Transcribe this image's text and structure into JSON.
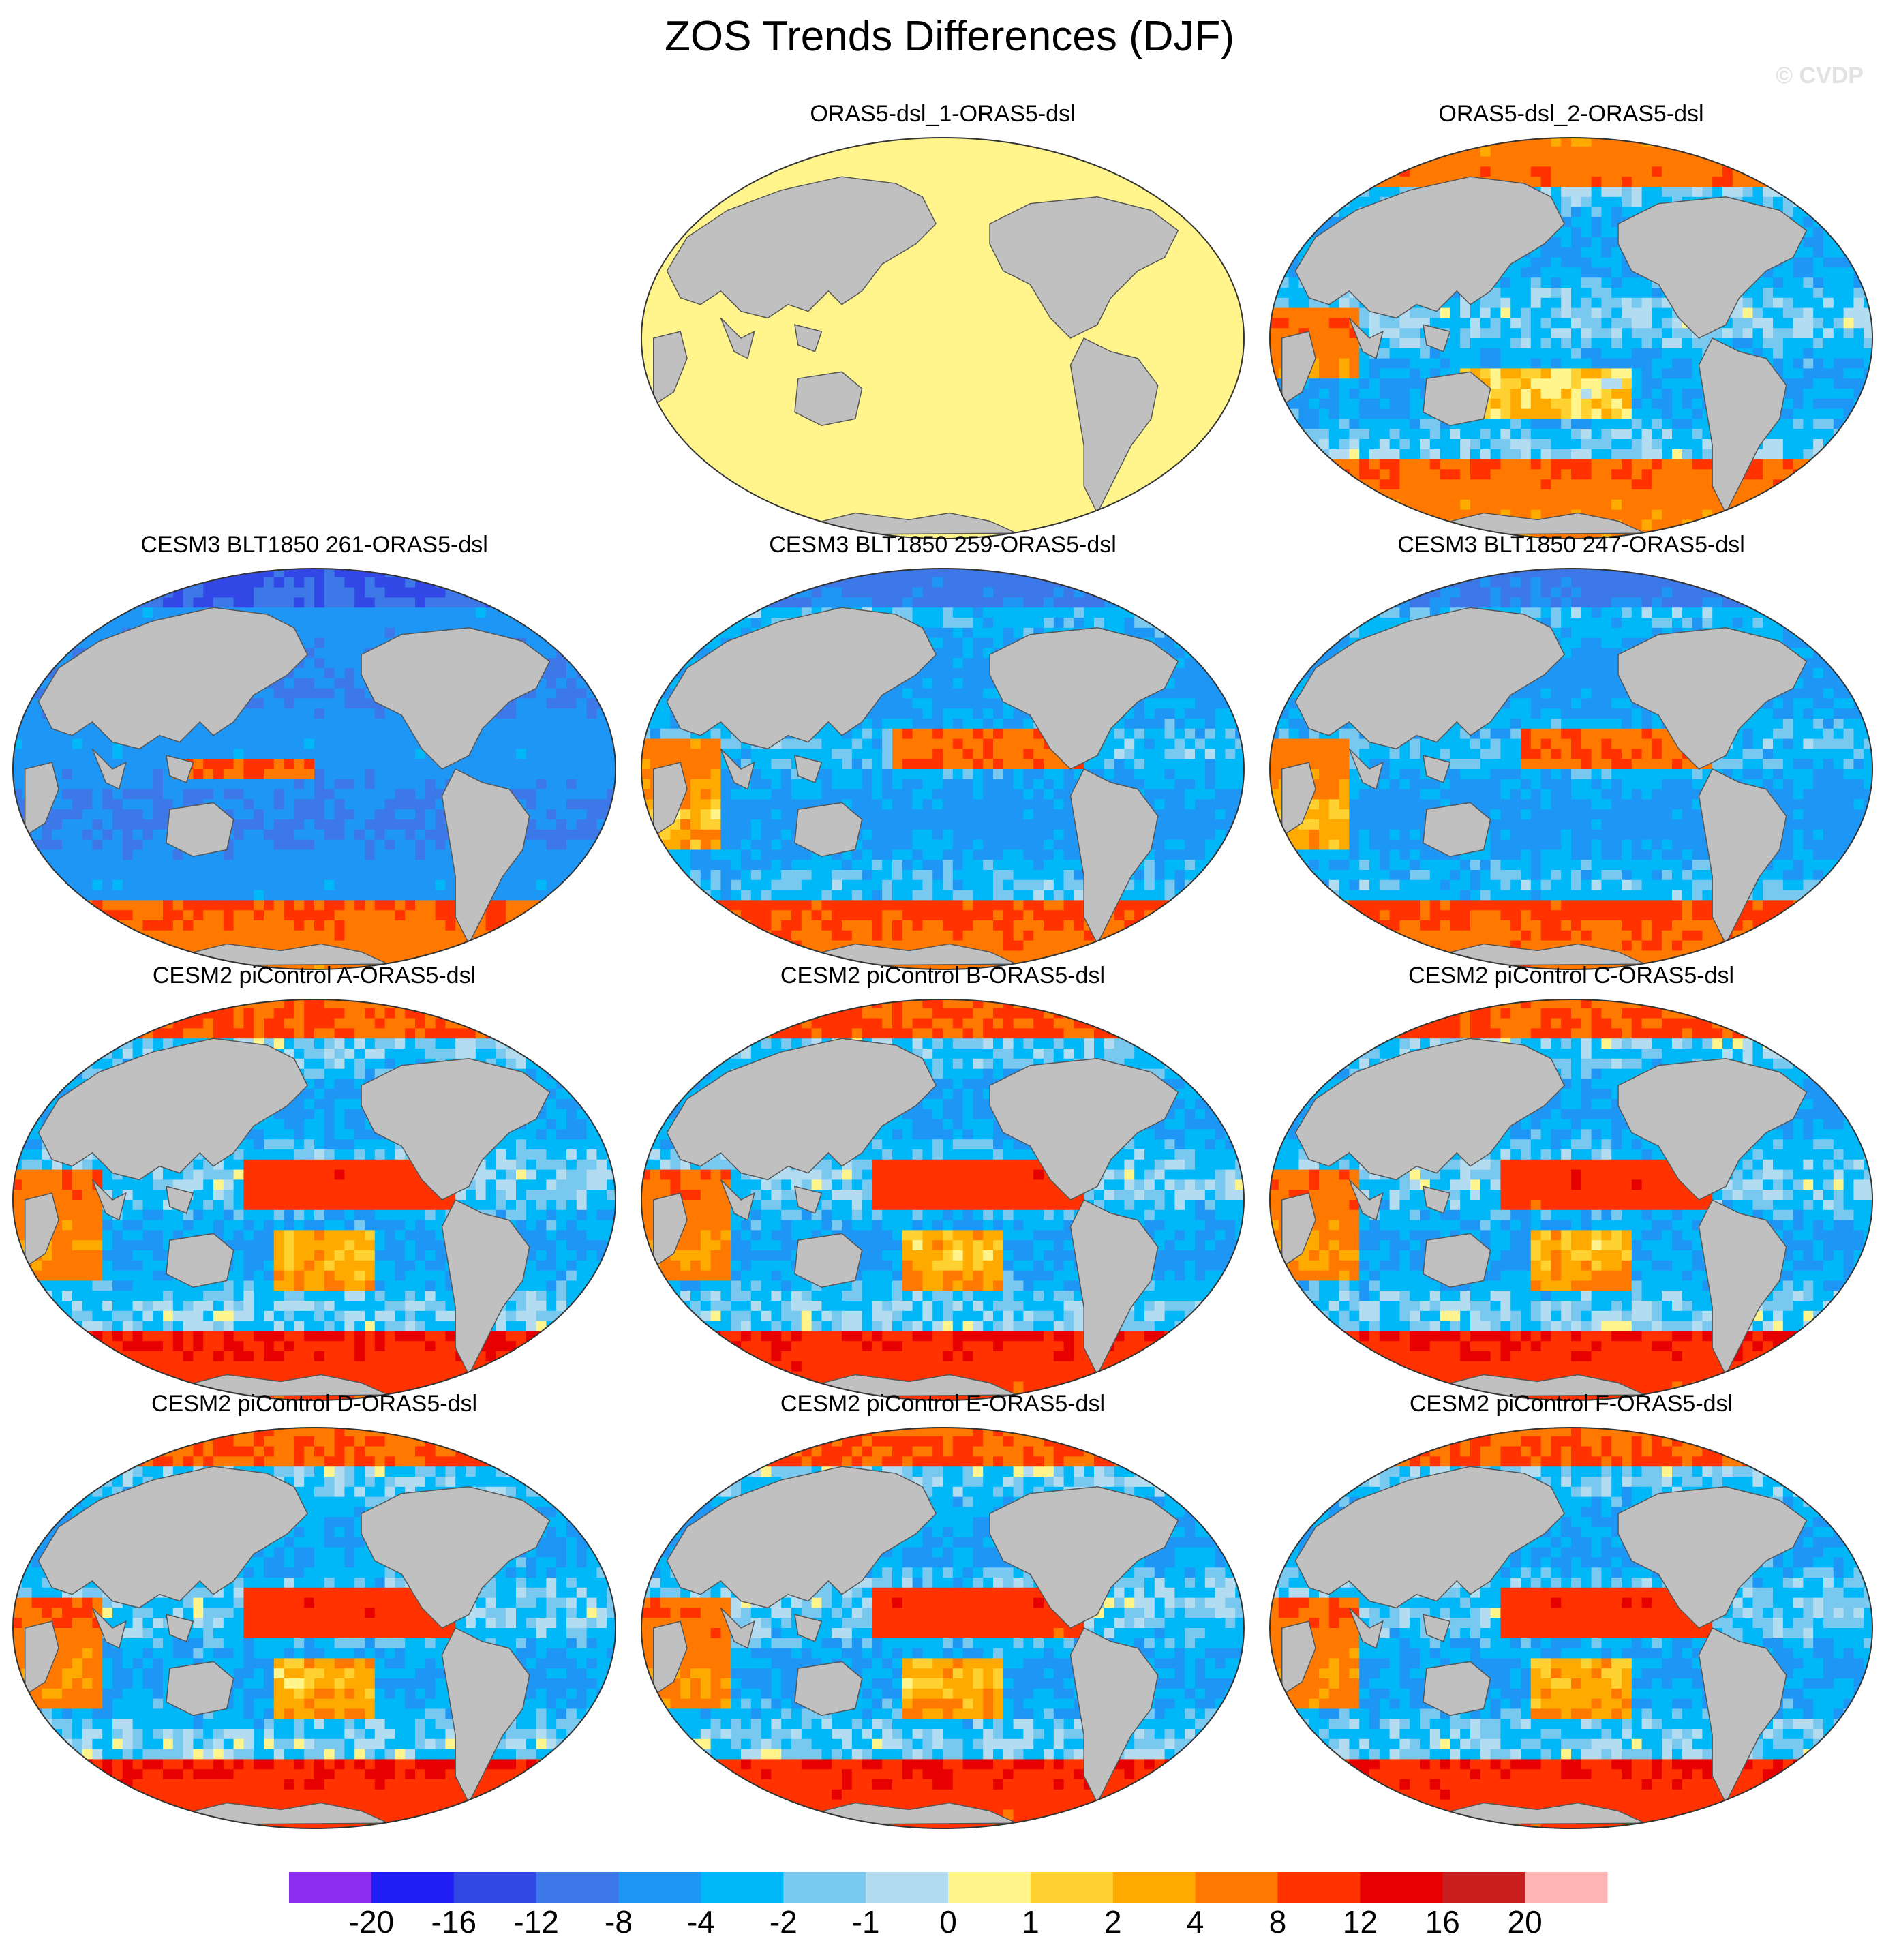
{
  "title": "ZOS Trends Differences (DJF)",
  "watermark": "© CVDP",
  "panels": [
    {
      "title": "ORAS5-dsl_1-ORAS5-dsl",
      "pattern": "uniform"
    },
    {
      "title": "ORAS5-dsl_2-ORAS5-dsl",
      "pattern": "oras"
    },
    {
      "title": "CESM3 BLT1850 261-ORAS5-dsl",
      "pattern": "cool"
    },
    {
      "title": "CESM3 BLT1850 259-ORAS5-dsl",
      "pattern": "mixed"
    },
    {
      "title": "CESM3 BLT1850 247-ORAS5-dsl",
      "pattern": "mixed"
    },
    {
      "title": "CESM2 piControl A-ORAS5-dsl",
      "pattern": "warm"
    },
    {
      "title": "CESM2 piControl B-ORAS5-dsl",
      "pattern": "warm"
    },
    {
      "title": "CESM2 piControl C-ORAS5-dsl",
      "pattern": "warm"
    },
    {
      "title": "CESM2 piControl D-ORAS5-dsl",
      "pattern": "warm"
    },
    {
      "title": "CESM2 piControl E-ORAS5-dsl",
      "pattern": "warm"
    },
    {
      "title": "CESM2 piControl F-ORAS5-dsl",
      "pattern": "warm"
    }
  ],
  "colorbar": {
    "labels": [
      "-20",
      "-16",
      "-12",
      "-8",
      "-4",
      "-2",
      "-1",
      "0",
      "1",
      "2",
      "4",
      "8",
      "12",
      "16",
      "20"
    ],
    "colors": [
      "#8c2cf0",
      "#1e1ef5",
      "#3248e6",
      "#3c78e8",
      "#1e96f5",
      "#00b8f8",
      "#78c8f0",
      "#b4dcf0",
      "#fff58c",
      "#ffd232",
      "#ffaa00",
      "#ff7800",
      "#ff3200",
      "#e60000",
      "#c81e1e",
      "#ffb4b4"
    ]
  },
  "colors": {
    "land": "#c0c0c0",
    "uniform_ocean": "#fff58c"
  }
}
